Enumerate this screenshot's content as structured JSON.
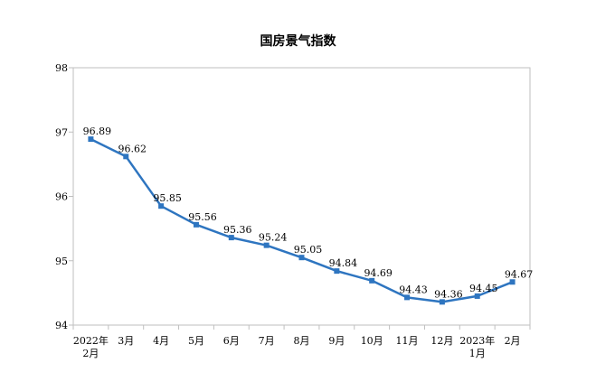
{
  "chart_data": {
    "type": "line",
    "title": "国房景气指数",
    "categories": [
      [
        "2022年",
        "2月"
      ],
      [
        "3月"
      ],
      [
        "4月"
      ],
      [
        "5月"
      ],
      [
        "6月"
      ],
      [
        "7月"
      ],
      [
        "8月"
      ],
      [
        "9月"
      ],
      [
        "10月"
      ],
      [
        "11月"
      ],
      [
        "12月"
      ],
      [
        "2023年",
        "1月"
      ],
      [
        "2月"
      ]
    ],
    "series": [
      {
        "values": [
          96.89,
          96.62,
          95.85,
          95.56,
          95.36,
          95.24,
          95.05,
          94.84,
          94.69,
          94.43,
          94.36,
          94.45,
          94.67
        ]
      }
    ],
    "data_labels": [
      "96.89",
      "96.62",
      "95.85",
      "95.56",
      "95.36",
      "95.24",
      "95.05",
      "94.84",
      "94.69",
      "94.43",
      "94.36",
      "94.45",
      "94.67"
    ],
    "ylim": [
      94,
      98
    ],
    "yticks": [
      "94",
      "95",
      "96",
      "97",
      "98"
    ],
    "grid": false,
    "legend": "none",
    "line_color": "#2e75c0",
    "axis_color": "#bfbfbf"
  }
}
